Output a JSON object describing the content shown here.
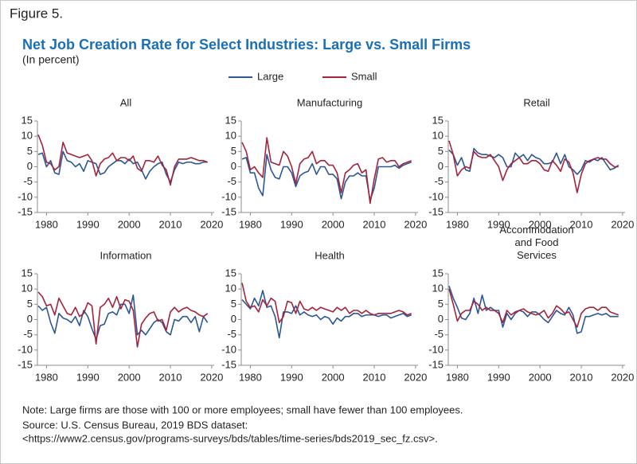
{
  "figure_label": "Figure 5.",
  "title": "Net Job Creation Rate for Select Industries: Large vs. Small Firms",
  "subtitle": "(In percent)",
  "note": "Note: Large firms are those with 100 or more employees; small have fewer than 100 employees.",
  "source": "Source: U.S. Census Bureau, 2019 BDS dataset:",
  "source_url": "<https://www2.census.gov/programs-surveys/bds/tables/time-series/bds2019_sec_fz.csv>.",
  "chart_data": [
    {
      "type": "line",
      "title": "All",
      "xlim": [
        1977.8,
        2020.6
      ],
      "ylim": [
        -15,
        15
      ],
      "xticks": [
        1980,
        1990,
        2000,
        2010,
        2020
      ],
      "yticks": [
        -15,
        -10,
        -5,
        0,
        5,
        10,
        15
      ],
      "x": [
        1978,
        1979,
        1980,
        1981,
        1982,
        1983,
        1984,
        1985,
        1986,
        1987,
        1988,
        1989,
        1990,
        1991,
        1992,
        1993,
        1994,
        1995,
        1996,
        1997,
        1998,
        1999,
        2000,
        2001,
        2002,
        2003,
        2004,
        2005,
        2006,
        2007,
        2008,
        2009,
        2010,
        2011,
        2012,
        2013,
        2014,
        2015,
        2016,
        2017,
        2018,
        2019
      ],
      "series": [
        {
          "name": "Large",
          "color": "#2b5797",
          "values": [
            4,
            4.5,
            0,
            2,
            -2,
            -2.5,
            5,
            2,
            1.5,
            0,
            1,
            -1.5,
            2,
            1.5,
            1,
            -2.5,
            -2,
            0,
            1,
            2,
            2,
            1,
            2.5,
            1,
            1.5,
            -1,
            -4,
            -1.5,
            0,
            1,
            1.5,
            -2.5,
            -5,
            -1,
            1.5,
            1,
            1.5,
            1.5,
            1,
            1,
            1.5,
            1.5
          ]
        },
        {
          "name": "Small",
          "color": "#a3243b",
          "values": [
            10.5,
            7,
            1.5,
            1,
            -1,
            0,
            8,
            4.5,
            4,
            3.5,
            3,
            3.5,
            4,
            2,
            -3,
            1,
            2.5,
            3,
            4.5,
            2,
            3,
            3,
            2,
            3.5,
            -0.5,
            -1.5,
            2,
            2,
            1.5,
            3.5,
            0.5,
            -1,
            -6,
            0,
            2.5,
            2.5,
            2.5,
            3,
            2.5,
            2,
            2,
            1.5
          ]
        }
      ]
    },
    {
      "type": "line",
      "title": "Manufacturing",
      "xlim": [
        1977.8,
        2020.6
      ],
      "ylim": [
        -15,
        15
      ],
      "xticks": [
        1980,
        1990,
        2000,
        2010,
        2020
      ],
      "yticks": [
        -15,
        -10,
        -5,
        0,
        5,
        10,
        15
      ],
      "x": [
        1978,
        1979,
        1980,
        1981,
        1982,
        1983,
        1984,
        1985,
        1986,
        1987,
        1988,
        1989,
        1990,
        1991,
        1992,
        1993,
        1994,
        1995,
        1996,
        1997,
        1998,
        1999,
        2000,
        2001,
        2002,
        2003,
        2004,
        2005,
        2006,
        2007,
        2008,
        2009,
        2010,
        2011,
        2012,
        2013,
        2014,
        2015,
        2016,
        2017,
        2018,
        2019
      ],
      "series": [
        {
          "name": "Large",
          "color": "#2b5797",
          "values": [
            2.5,
            3,
            -2,
            -2,
            -7,
            -9.5,
            4,
            -1,
            -3.5,
            -4,
            0,
            0,
            -2,
            -6.5,
            -3,
            -2,
            -1.5,
            1,
            -2.5,
            0,
            0,
            -2.5,
            -2.5,
            -4,
            -10.5,
            -5,
            -3,
            -3,
            -2,
            -3,
            -3,
            -11,
            -7,
            0,
            0,
            0,
            0,
            0.5,
            -0.5,
            0.5,
            1,
            1.5
          ]
        },
        {
          "name": "Small",
          "color": "#a3243b",
          "values": [
            8,
            5,
            -1,
            0,
            -2,
            -3.5,
            9.5,
            1.5,
            1,
            0.5,
            5,
            3.5,
            0,
            -5.5,
            1,
            2.5,
            3,
            5,
            1,
            2,
            2,
            0.5,
            0.5,
            -2,
            -8.5,
            -2,
            -1,
            0.5,
            1,
            -2,
            -1,
            -12,
            -4,
            2.5,
            3,
            1.5,
            2,
            2,
            0,
            1,
            1.5,
            2
          ]
        }
      ]
    },
    {
      "type": "line",
      "title": "Retail",
      "xlim": [
        1977.8,
        2020.6
      ],
      "ylim": [
        -15,
        15
      ],
      "xticks": [
        1980,
        1990,
        2000,
        2010,
        2020
      ],
      "yticks": [
        -15,
        -10,
        -5,
        0,
        5,
        10,
        15
      ],
      "x": [
        1978,
        1979,
        1980,
        1981,
        1982,
        1983,
        1984,
        1985,
        1986,
        1987,
        1988,
        1989,
        1990,
        1991,
        1992,
        1993,
        1994,
        1995,
        1996,
        1997,
        1998,
        1999,
        2000,
        2001,
        2002,
        2003,
        2004,
        2005,
        2006,
        2007,
        2008,
        2009,
        2010,
        2011,
        2012,
        2013,
        2014,
        2015,
        2016,
        2017,
        2018,
        2019
      ],
      "series": [
        {
          "name": "Large",
          "color": "#2b5797",
          "values": [
            5.5,
            4,
            0.5,
            3,
            -1,
            -1.5,
            6,
            4.5,
            4,
            4,
            3.5,
            3,
            4,
            3,
            0,
            0,
            4.5,
            3,
            4,
            2,
            4,
            3,
            2.5,
            1,
            1,
            1.5,
            4.5,
            1,
            4,
            0,
            -1,
            -2.5,
            -1,
            2,
            1.5,
            2.5,
            2,
            3,
            1,
            -1,
            -0.5,
            0.5
          ]
        },
        {
          "name": "Small",
          "color": "#a3243b",
          "values": [
            8.5,
            4,
            -3,
            -1,
            0,
            -0.5,
            5,
            3.5,
            3,
            3,
            4,
            2,
            0,
            -4.5,
            -1,
            1,
            2,
            3,
            1,
            1,
            2,
            2,
            1,
            -1,
            -1.5,
            2,
            0.5,
            -1.5,
            2.5,
            1.5,
            -2,
            -8.5,
            -2.5,
            1,
            2,
            2.5,
            3,
            2.5,
            2.5,
            1,
            0,
            0
          ]
        }
      ]
    },
    {
      "type": "line",
      "title": "Information",
      "xlim": [
        1977.8,
        2020.6
      ],
      "ylim": [
        -15,
        15
      ],
      "xticks": [
        1980,
        1990,
        2000,
        2010,
        2020
      ],
      "yticks": [
        -15,
        -10,
        -5,
        0,
        5,
        10,
        15
      ],
      "x": [
        1978,
        1979,
        1980,
        1981,
        1982,
        1983,
        1984,
        1985,
        1986,
        1987,
        1988,
        1989,
        1990,
        1991,
        1992,
        1993,
        1994,
        1995,
        1996,
        1997,
        1998,
        1999,
        2000,
        2001,
        2002,
        2003,
        2004,
        2005,
        2006,
        2007,
        2008,
        2009,
        2010,
        2011,
        2012,
        2013,
        2014,
        2015,
        2016,
        2017,
        2018,
        2019
      ],
      "series": [
        {
          "name": "Large",
          "color": "#2b5797",
          "values": [
            4.5,
            3,
            4,
            -1,
            -4.5,
            2,
            0.5,
            0,
            -1,
            1,
            -2,
            3,
            1,
            -3,
            -6.5,
            -2,
            -1.5,
            2,
            2.5,
            1.5,
            5,
            5,
            2,
            8,
            -5,
            -3.5,
            -5,
            -3,
            -1,
            0,
            -1,
            -4,
            -5,
            0,
            -0.5,
            1,
            1,
            -1,
            1,
            -4,
            1,
            -1
          ]
        },
        {
          "name": "Small",
          "color": "#a3243b",
          "values": [
            9,
            7.5,
            4.5,
            5,
            1.5,
            7,
            4.5,
            2,
            1.5,
            4,
            1,
            2,
            5.5,
            4.5,
            -8,
            4,
            5,
            7,
            4,
            7.5,
            3.5,
            6.5,
            6,
            3,
            -9,
            -1.5,
            0.5,
            2,
            2.5,
            -0.5,
            0,
            -3.5,
            2.5,
            4,
            2.5,
            3.5,
            4,
            3,
            2.5,
            1.5,
            1,
            2
          ]
        }
      ]
    },
    {
      "type": "line",
      "title": "Health",
      "xlim": [
        1977.8,
        2020.6
      ],
      "ylim": [
        -15,
        15
      ],
      "xticks": [
        1980,
        1990,
        2000,
        2010,
        2020
      ],
      "yticks": [
        -15,
        -10,
        -5,
        0,
        5,
        10,
        15
      ],
      "x": [
        1978,
        1979,
        1980,
        1981,
        1982,
        1983,
        1984,
        1985,
        1986,
        1987,
        1988,
        1989,
        1990,
        1991,
        1992,
        1993,
        1994,
        1995,
        1996,
        1997,
        1998,
        1999,
        2000,
        2001,
        2002,
        2003,
        2004,
        2005,
        2006,
        2007,
        2008,
        2009,
        2010,
        2011,
        2012,
        2013,
        2014,
        2015,
        2016,
        2017,
        2018,
        2019
      ],
      "series": [
        {
          "name": "Large",
          "color": "#2b5797",
          "values": [
            6.5,
            5,
            3.5,
            7,
            4.5,
            9.5,
            4,
            4.5,
            1,
            -6,
            2.5,
            2.5,
            2,
            4.5,
            1.5,
            2.5,
            1.5,
            1,
            1.5,
            0,
            1,
            0.5,
            -1.5,
            0.5,
            -0.5,
            1,
            1,
            2,
            2,
            1,
            1.5,
            1.5,
            1.5,
            1,
            1.5,
            1.5,
            0.5,
            1,
            1.5,
            2,
            1,
            1.5
          ]
        },
        {
          "name": "Small",
          "color": "#a3243b",
          "values": [
            12,
            6,
            4,
            4.5,
            2.5,
            6.5,
            4.5,
            7,
            6,
            -1,
            1,
            6,
            5.5,
            2,
            6,
            3.5,
            3,
            4,
            3,
            4,
            3.5,
            3,
            2.5,
            4,
            3,
            4,
            2,
            3,
            3,
            2,
            3,
            2,
            1.5,
            2,
            2,
            2,
            2,
            2.5,
            3,
            2.5,
            1.5,
            2
          ]
        }
      ]
    },
    {
      "type": "line",
      "title": "Accommodation and Food Services",
      "xlim": [
        1977.8,
        2020.6
      ],
      "ylim": [
        -15,
        15
      ],
      "xticks": [
        1980,
        1990,
        2000,
        2010,
        2020
      ],
      "yticks": [
        -15,
        -10,
        -5,
        0,
        5,
        10,
        15
      ],
      "x": [
        1978,
        1979,
        1980,
        1981,
        1982,
        1983,
        1984,
        1985,
        1986,
        1987,
        1988,
        1989,
        1990,
        1991,
        1992,
        1993,
        1994,
        1995,
        1996,
        1997,
        1998,
        1999,
        2000,
        2001,
        2002,
        2003,
        2004,
        2005,
        2006,
        2007,
        2008,
        2009,
        2010,
        2011,
        2012,
        2013,
        2014,
        2015,
        2016,
        2017,
        2018,
        2019
      ],
      "series": [
        {
          "name": "Large",
          "color": "#2b5797",
          "values": [
            11,
            7,
            4,
            0.5,
            0,
            2,
            7,
            2,
            8,
            3,
            4,
            3,
            3,
            -2.5,
            2,
            0,
            2,
            3,
            2.5,
            1,
            2.5,
            2.5,
            1.5,
            0,
            -1,
            1,
            3,
            2,
            1.5,
            4,
            1.5,
            -4.5,
            -4,
            1,
            1,
            1.5,
            2,
            1.5,
            2,
            1,
            1,
            1
          ]
        },
        {
          "name": "Small",
          "color": "#a3243b",
          "values": [
            10,
            5,
            -0.5,
            2,
            3,
            3,
            6,
            5,
            3,
            4,
            3,
            3,
            2,
            -1,
            3,
            1.5,
            2.5,
            3,
            3.5,
            2.5,
            2,
            1.5,
            2,
            3,
            0.5,
            2,
            4.5,
            3.5,
            2,
            2.5,
            0,
            -2.5,
            2,
            3.5,
            4,
            4,
            3,
            4,
            4,
            2.5,
            2,
            1.5
          ]
        }
      ]
    }
  ]
}
